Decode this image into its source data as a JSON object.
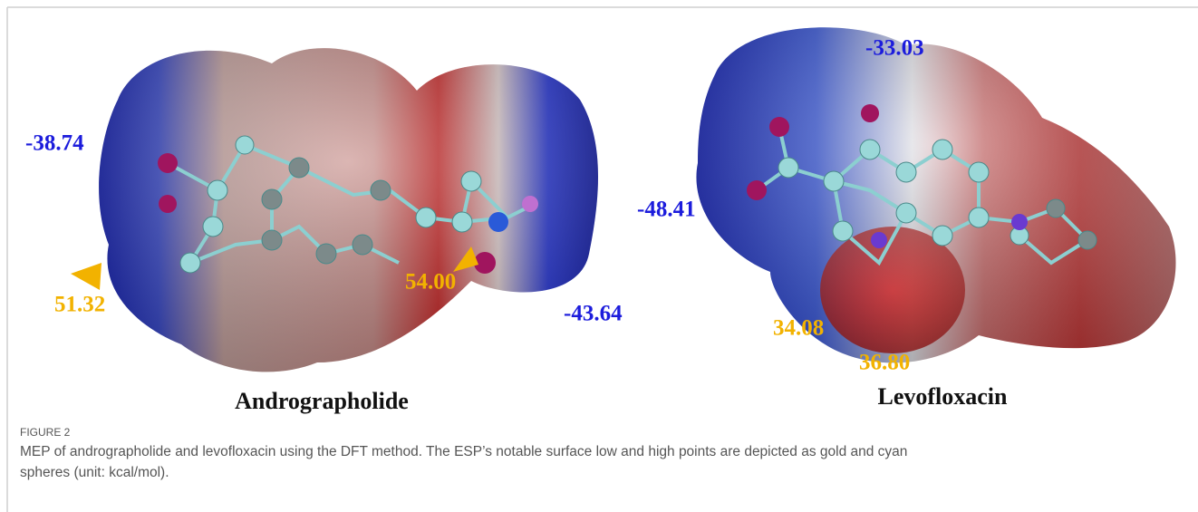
{
  "figure": {
    "panels": [
      {
        "name": "Andrographolide",
        "annotations": [
          "-38.74",
          "51.32",
          "54.00",
          "-43.64"
        ]
      },
      {
        "name": "Levofloxacin",
        "annotations": [
          "-33.03",
          "-48.41",
          "34.08",
          "36.80"
        ]
      }
    ],
    "label": "FIGURE 2",
    "caption_lines": [
      "MEP of andrographolide and levofloxacin using the DFT method. The ESP’s notable surface low and high points are depicted as gold and cyan",
      "spheres (unit: kcal/mol)."
    ]
  }
}
